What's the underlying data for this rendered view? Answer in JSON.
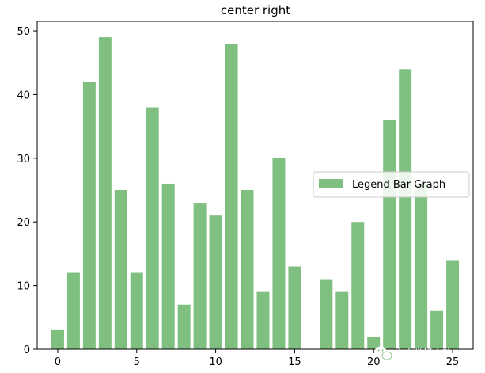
{
  "chart_data": {
    "type": "bar",
    "title": "center right",
    "xlabel": "",
    "ylabel": "",
    "x": [
      0,
      1,
      2,
      3,
      4,
      5,
      6,
      7,
      8,
      9,
      10,
      11,
      12,
      13,
      14,
      15,
      16,
      17,
      18,
      19,
      20,
      21,
      22,
      23,
      24,
      25
    ],
    "series": [
      {
        "name": "Legend Bar Graph",
        "values": [
          3,
          12,
          42,
          49,
          25,
          12,
          38,
          26,
          7,
          23,
          21,
          48,
          25,
          9,
          30,
          13,
          0,
          11,
          9,
          20,
          2,
          36,
          44,
          26,
          6,
          14
        ],
        "color": "#7fbf7f"
      }
    ],
    "xticks": [
      0,
      5,
      10,
      15,
      20,
      25
    ],
    "yticks": [
      0,
      10,
      20,
      30,
      40,
      50
    ],
    "xlim": [
      -1.3,
      26.3
    ],
    "ylim": [
      0,
      51.5
    ],
    "grid": false,
    "legend_position": "center right"
  },
  "watermark": {
    "text": "土木爱研小站",
    "icon": "wechat-icon"
  }
}
